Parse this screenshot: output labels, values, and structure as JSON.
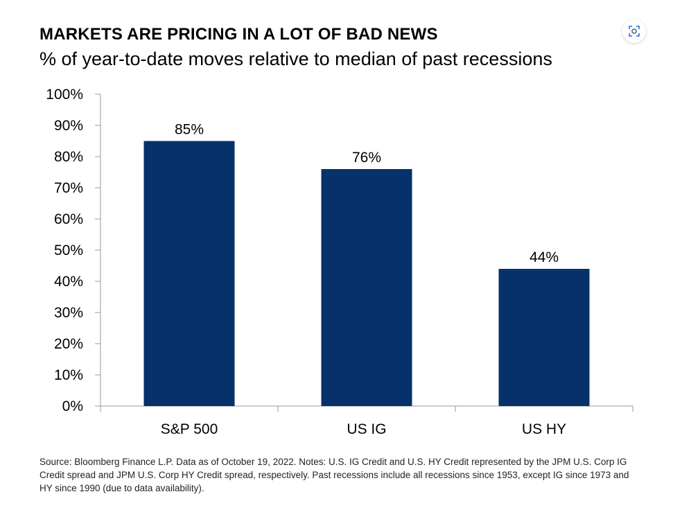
{
  "header": {
    "title": "MARKETS ARE PRICING IN A LOT OF BAD NEWS",
    "subtitle": "% of year-to-date moves relative to median of past recessions"
  },
  "toolbar": {
    "lens_icon": "image-search-icon"
  },
  "chart_data": {
    "type": "bar",
    "categories": [
      "S&P 500",
      "US IG",
      "US HY"
    ],
    "values": [
      85,
      76,
      44
    ],
    "value_labels": [
      "85%",
      "76%",
      "44%"
    ],
    "ylim": [
      0,
      100
    ],
    "yticks": [
      0,
      10,
      20,
      30,
      40,
      50,
      60,
      70,
      80,
      90,
      100
    ],
    "ytick_labels": [
      "0%",
      "10%",
      "20%",
      "30%",
      "40%",
      "50%",
      "60%",
      "70%",
      "80%",
      "90%",
      "100%"
    ],
    "grid": false,
    "bar_color": "#06316a",
    "axis_color": "#999999"
  },
  "footnote": "Source: Bloomberg Finance L.P. Data as of October 19, 2022. Notes: U.S. IG Credit and U.S. HY Credit represented by the JPM U.S. Corp IG Credit spread and JPM U.S. Corp HY Credit spread, respectively. Past recessions include all recessions since 1953, except IG since 1973 and HY since 1990 (due to data availability)."
}
